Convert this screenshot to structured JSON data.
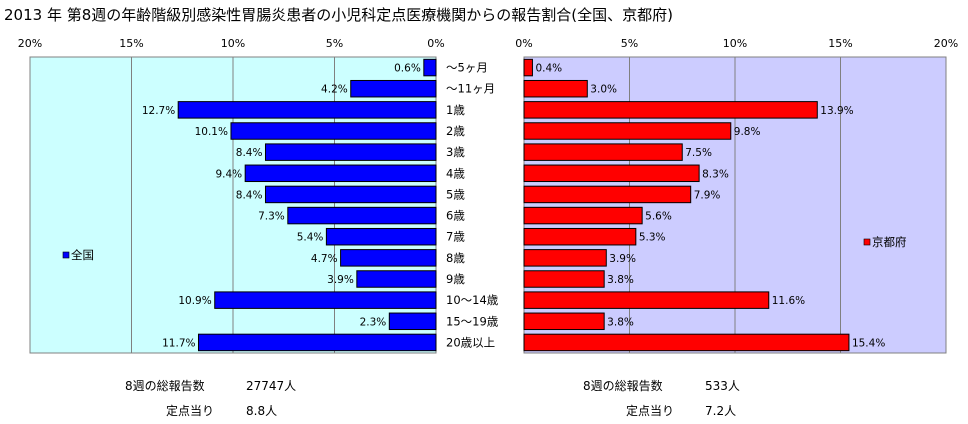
{
  "title": "2013 年 第8週の年齢階級別感染性胃腸炎患者の小児科定点医療機関からの報告割合(全国、京都府)",
  "chart_data": {
    "type": "bar",
    "orientation": "horizontal-butterfly",
    "categories": [
      "〜5ヶ月",
      "〜11ヶ月",
      "1歳",
      "2歳",
      "3歳",
      "4歳",
      "5歳",
      "6歳",
      "7歳",
      "8歳",
      "9歳",
      "10〜14歳",
      "15〜19歳",
      "20歳以上"
    ],
    "xlim": [
      0,
      20
    ],
    "ticks": [
      "0%",
      "5%",
      "10%",
      "15%",
      "20%"
    ],
    "grid": true,
    "series": [
      {
        "name": "全国",
        "side": "left",
        "color": "#0000ff",
        "values": [
          0.6,
          4.2,
          12.7,
          10.1,
          8.4,
          9.4,
          8.4,
          7.3,
          5.4,
          4.7,
          3.9,
          10.9,
          2.3,
          11.7
        ],
        "labels": [
          "0.6%",
          "4.2%",
          "12.7%",
          "10.1%",
          "8.4%",
          "9.4%",
          "8.4%",
          "7.3%",
          "5.4%",
          "4.7%",
          "3.9%",
          "10.9%",
          "2.3%",
          "11.7%"
        ]
      },
      {
        "name": "京都府",
        "side": "right",
        "color": "#ff0000",
        "values": [
          0.4,
          3.0,
          13.9,
          9.8,
          7.5,
          8.3,
          7.9,
          5.6,
          5.3,
          3.9,
          3.8,
          11.6,
          3.8,
          15.4
        ],
        "labels": [
          "0.4%",
          "3.0%",
          "13.9%",
          "9.8%",
          "7.5%",
          "8.3%",
          "7.9%",
          "5.6%",
          "5.3%",
          "3.9%",
          "3.8%",
          "11.6%",
          "3.8%",
          "15.4%"
        ]
      }
    ],
    "legend_placement": "inside-left / inside-right"
  },
  "stats": {
    "national": {
      "total_label": "8週の総報告数",
      "total_value": "27747人",
      "per_label": "定点当り",
      "per_value": "8.8人"
    },
    "kyoto": {
      "total_label": "8週の総報告数",
      "total_value": "533人",
      "per_label": "定点当り",
      "per_value": "7.2人"
    }
  }
}
